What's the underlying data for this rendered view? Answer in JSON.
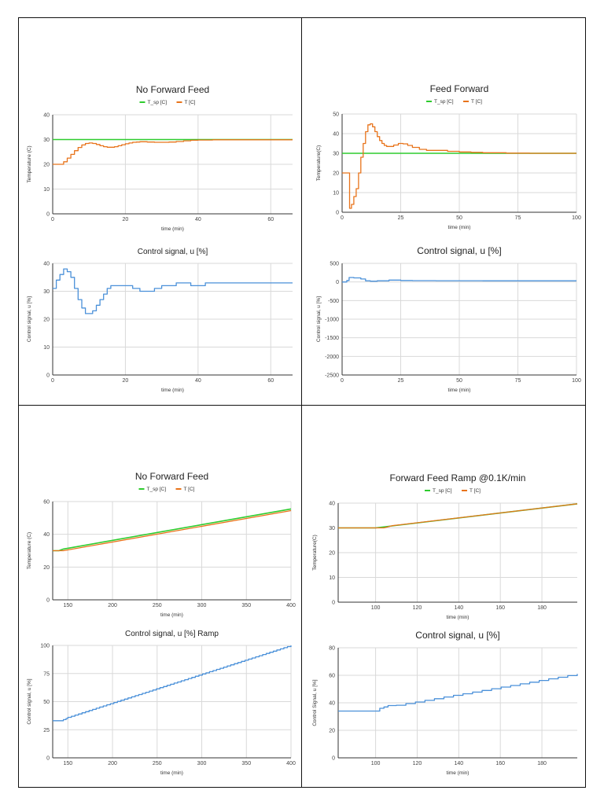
{
  "legend": {
    "setpoint": "T_sp [C]",
    "temp": "T [C]"
  },
  "colors": {
    "setpoint": "#2ecc2e",
    "temp": "#e8731a",
    "control": "#4a90d9"
  },
  "chart_data": [
    {
      "type": "line",
      "panel": "top-left",
      "title": "No Forward Feed",
      "xlabel": "time (min)",
      "ylabel": "Temperature (C)",
      "xlim": [
        0,
        66
      ],
      "ylim": [
        0,
        40
      ],
      "xticks": [
        0,
        20,
        40,
        60
      ],
      "yticks": [
        0,
        10,
        20,
        30,
        40
      ],
      "step": true,
      "series": [
        {
          "name": "T_sp [C]",
          "role": "setpoint",
          "x": [
            0,
            66
          ],
          "values": [
            30,
            30
          ]
        },
        {
          "name": "T [C]",
          "role": "temp",
          "x": [
            0,
            1,
            2,
            3,
            4,
            5,
            6,
            7,
            8,
            9,
            10,
            11,
            12,
            13,
            14,
            15,
            16,
            17,
            18,
            19,
            20,
            21,
            22,
            23,
            24,
            25,
            26,
            27,
            28,
            30,
            32,
            34,
            36,
            38,
            40,
            44,
            48,
            52,
            56,
            60,
            66
          ],
          "values": [
            20,
            20,
            20,
            21,
            22.5,
            24,
            25.5,
            26.8,
            27.8,
            28.4,
            28.6,
            28.4,
            28,
            27.5,
            27.1,
            26.9,
            26.9,
            27.1,
            27.5,
            27.9,
            28.3,
            28.6,
            28.9,
            29,
            29.1,
            29.1,
            29,
            29,
            28.9,
            28.9,
            29,
            29.2,
            29.5,
            29.7,
            29.8,
            29.9,
            29.9,
            29.9,
            29.9,
            29.9,
            29.9
          ]
        }
      ]
    },
    {
      "type": "line",
      "panel": "top-left",
      "title": "Control signal, u [%]",
      "xlabel": "time (min)",
      "ylabel": "Control signal, u [%]",
      "xlim": [
        0,
        66
      ],
      "ylim": [
        0,
        40
      ],
      "xticks": [
        0,
        20,
        40,
        60
      ],
      "yticks": [
        0,
        10,
        20,
        30,
        40
      ],
      "step": true,
      "series": [
        {
          "name": "u [%]",
          "role": "control",
          "x": [
            0,
            1,
            2,
            3,
            4,
            5,
            6,
            7,
            8,
            9,
            10,
            11,
            12,
            13,
            14,
            15,
            16,
            18,
            20,
            22,
            24,
            26,
            28,
            30,
            32,
            34,
            36,
            38,
            40,
            42,
            50,
            60,
            66
          ],
          "values": [
            31,
            34,
            36,
            38,
            37,
            35,
            31,
            27,
            24,
            22,
            22,
            23,
            25,
            27,
            29,
            31,
            32,
            32,
            32,
            31,
            30,
            30,
            31,
            32,
            32,
            33,
            33,
            32,
            32,
            33,
            33,
            33,
            33
          ]
        }
      ]
    },
    {
      "type": "line",
      "panel": "top-right",
      "title": "Feed Forward",
      "xlabel": "time (min)",
      "ylabel": "Temperature(C)",
      "xlim": [
        0,
        100
      ],
      "ylim": [
        0,
        50
      ],
      "xticks": [
        0,
        25,
        50,
        75,
        100
      ],
      "yticks": [
        0,
        10,
        20,
        30,
        40,
        50
      ],
      "step": true,
      "series": [
        {
          "name": "T_sp [C]",
          "role": "setpoint",
          "x": [
            0,
            100
          ],
          "values": [
            30,
            30
          ]
        },
        {
          "name": "T [C]",
          "role": "temp",
          "x": [
            0,
            3,
            3.2,
            4,
            5,
            6,
            7,
            8,
            9,
            10,
            11,
            12,
            13,
            14,
            15,
            16,
            17,
            18,
            19,
            20,
            22,
            24,
            26,
            28,
            30,
            33,
            36,
            40,
            45,
            50,
            55,
            60,
            70,
            80,
            90,
            100
          ],
          "values": [
            20,
            20,
            2,
            4,
            8,
            12,
            20,
            28,
            35,
            41,
            44.5,
            45,
            43.5,
            41,
            38.5,
            36.5,
            35,
            34,
            33.5,
            33.5,
            34.2,
            35,
            34.8,
            34,
            33,
            32,
            31.5,
            31.5,
            31,
            30.7,
            30.5,
            30.3,
            30.1,
            30,
            30,
            30
          ]
        }
      ]
    },
    {
      "type": "line",
      "panel": "top-right",
      "title": "Control signal, u [%]",
      "xlabel": "time (min)",
      "ylabel": "Control signal, u [%]",
      "xlim": [
        0,
        100
      ],
      "ylim": [
        -2500,
        500
      ],
      "xticks": [
        0,
        25,
        50,
        75,
        100
      ],
      "yticks": [
        -2500,
        -2000,
        -1500,
        -1000,
        -500,
        0,
        500
      ],
      "step": true,
      "series": [
        {
          "name": "u [%]",
          "role": "control",
          "x": [
            0,
            2,
            3,
            5,
            8,
            10,
            12,
            15,
            20,
            25,
            30,
            40,
            60,
            80,
            100
          ],
          "values": [
            0,
            40,
            120,
            110,
            80,
            30,
            20,
            30,
            50,
            40,
            35,
            33,
            32,
            32,
            32
          ]
        }
      ]
    },
    {
      "type": "line",
      "panel": "bottom-left",
      "title": "No Forward Feed",
      "xlabel": "time (min)",
      "ylabel": "Temperature (C)",
      "xlim": [
        133,
        400
      ],
      "ylim": [
        0,
        60
      ],
      "xticks": [
        150,
        200,
        250,
        300,
        350,
        400
      ],
      "yticks": [
        0,
        20,
        40,
        60
      ],
      "step": false,
      "series": [
        {
          "name": "T_sp [C]",
          "role": "setpoint",
          "x": [
            133,
            140,
            145,
            150,
            400
          ],
          "values": [
            30,
            30,
            31,
            31.5,
            55.5
          ]
        },
        {
          "name": "T [C]",
          "role": "temp",
          "x": [
            133,
            145,
            150,
            400
          ],
          "values": [
            30,
            30,
            30.5,
            54.5
          ]
        }
      ]
    },
    {
      "type": "line",
      "panel": "bottom-left",
      "title": "Control signal, u [%] Ramp",
      "xlabel": "time (min)",
      "ylabel": "Control signal, u [%]",
      "xlim": [
        133,
        400
      ],
      "ylim": [
        0,
        100
      ],
      "xticks": [
        150,
        200,
        250,
        300,
        350,
        400
      ],
      "yticks": [
        0,
        25,
        50,
        75,
        100
      ],
      "step": true,
      "series": [
        {
          "name": "u [%]",
          "role": "control",
          "x": [
            133,
            142,
            145,
            148,
            150,
            400
          ],
          "values": [
            33,
            33,
            34,
            35,
            36,
            100
          ]
        }
      ]
    },
    {
      "type": "line",
      "panel": "bottom-right",
      "title": "Forward Feed Ramp @0.1K/min",
      "xlabel": "time (min)",
      "ylabel": "Temperature(C)",
      "xlim": [
        82,
        197
      ],
      "ylim": [
        0,
        40
      ],
      "xticks": [
        100,
        120,
        140,
        160,
        180
      ],
      "yticks": [
        0,
        10,
        20,
        30,
        40
      ],
      "step": false,
      "series": [
        {
          "name": "T_sp [C]",
          "role": "setpoint",
          "x": [
            82,
            100,
            197
          ],
          "values": [
            30,
            30,
            39.7
          ]
        },
        {
          "name": "T [C]",
          "role": "temp",
          "x": [
            82,
            104,
            108,
            197
          ],
          "values": [
            30,
            30,
            30.9,
            39.7
          ]
        }
      ]
    },
    {
      "type": "line",
      "panel": "bottom-right",
      "title": "Control signal, u [%]",
      "xlabel": "time (min)",
      "ylabel": "Control Signal, u [%]",
      "xlim": [
        82,
        197
      ],
      "ylim": [
        0,
        80
      ],
      "xticks": [
        100,
        120,
        140,
        160,
        180
      ],
      "yticks": [
        0,
        20,
        40,
        60,
        80
      ],
      "step": true,
      "series": [
        {
          "name": "u [%]",
          "role": "control",
          "x": [
            82,
            100,
            102,
            104,
            106,
            110,
            197
          ],
          "values": [
            34,
            34,
            36,
            37,
            38,
            38.2,
            61
          ]
        }
      ]
    }
  ]
}
